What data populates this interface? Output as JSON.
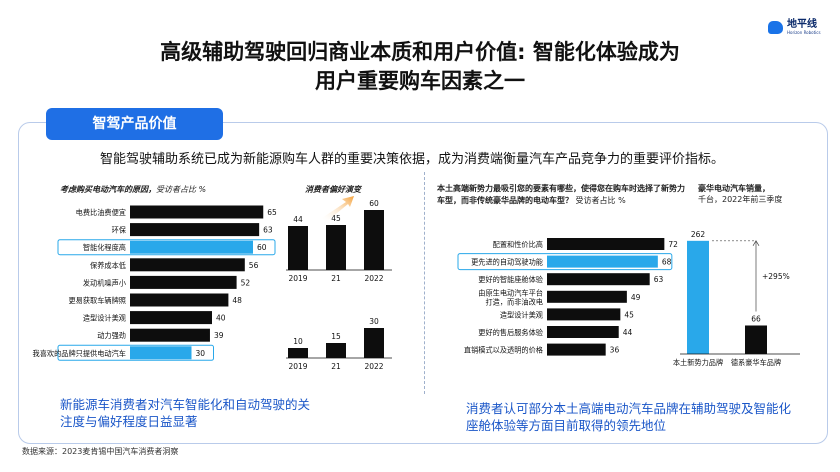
{
  "logo": {
    "cn": "地平线",
    "en": "Horizon Robotics"
  },
  "title_line1": "高级辅助驾驶回归商业本质和用户价值: 智能化体验成为",
  "title_line2": "用户重要购车因素之一",
  "section_tab": "智驾产品价值",
  "intro": "智能驾驶辅助系统已成为新能源购车人群的重要决策依据，成为消费端衡量汽车产品竞争力的重要评价指标。",
  "source": "数据来源：2023麦肯锡中国汽车消费者洞察",
  "left_caption": {
    "bold": "考虑购买电动汽车的原因，",
    "rest": "受访者占比 %"
  },
  "left_conclusion": "新能源车消费者对汽车智能化和自动驾驶的关注度与偏好程度日益显著",
  "right_caption": {
    "bold": "本土高端新势力最吸引您的要素有哪些，使得您在购车时选择了新势力车型，而非传统豪华品牌的电动车型？",
    "rest": "受访者占比 %"
  },
  "right_conclusion": "消费者认可部分本土高端电动汽车品牌在辅助驾驶及智能化座舱体验等方面目前取得的领先地位",
  "colors": {
    "bar_dark": "#0d0d0d",
    "bar_highlight": "#29a8ea",
    "accent_blue": "#1f6fe5",
    "text_blue": "#1a56c8"
  },
  "chart_data": [
    {
      "type": "bar",
      "orientation": "horizontal",
      "title": "考虑购买电动汽车的原因",
      "ylabel": "受访者占比 %",
      "categories": [
        "电费比油费便宜",
        "环保",
        "智能化程度高",
        "保养成本低",
        "发动机噪声小",
        "更易获取车辆牌照",
        "造型设计美观",
        "动力强劲",
        "我喜欢的品牌只提供电动汽车"
      ],
      "values": [
        65,
        63,
        60,
        56,
        52,
        48,
        40,
        39,
        30
      ],
      "highlight": [
        2,
        8
      ],
      "xlim": [
        0,
        70
      ]
    },
    {
      "type": "bar",
      "title": "消费者偏好演变",
      "categories": [
        "2019",
        "21",
        "2022"
      ],
      "series": [
        {
          "values": [
            44,
            45,
            60
          ]
        },
        {
          "values": [
            10,
            15,
            30
          ]
        }
      ]
    },
    {
      "type": "bar",
      "orientation": "horizontal",
      "title": "本土高端新势力最吸引您的要素有哪些，使得您在购车时选择了新势力车型，而非传统豪华品牌的电动车型？",
      "ylabel": "受访者占比 %",
      "categories": [
        "配置和性价比高",
        "更先进的自动驾驶功能",
        "更好的智能座舱体验",
        "由原生电动汽车平台打造，而非油改电",
        "造型设计美观",
        "更好的售后服务体验",
        "直销模式以及透明的价格"
      ],
      "values": [
        72,
        68,
        63,
        49,
        45,
        44,
        36
      ],
      "highlight": [
        1
      ],
      "xlim": [
        0,
        80
      ]
    },
    {
      "type": "bar",
      "title": "豪华电动汽车销量，",
      "subtitle": "千台，2022年前三季度",
      "categories": [
        "本土新势力品牌",
        "德系豪华车品牌"
      ],
      "values": [
        262,
        66
      ],
      "annotation": "+295%"
    }
  ]
}
